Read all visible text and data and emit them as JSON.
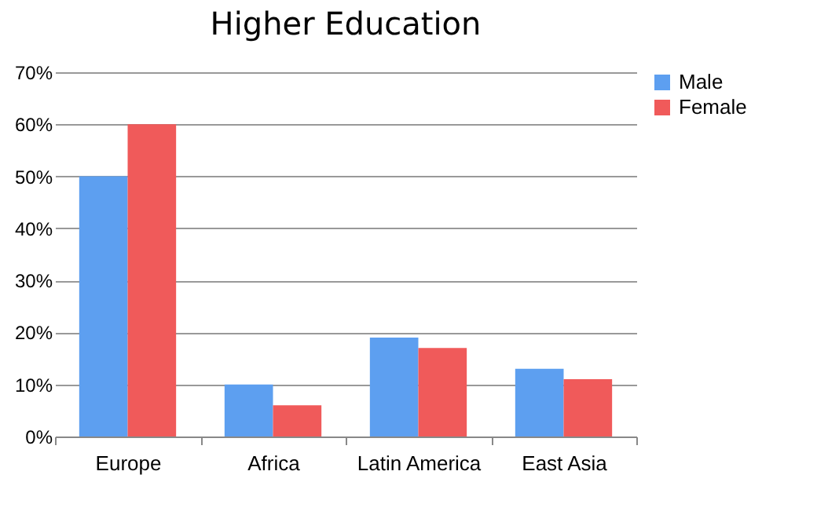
{
  "chart_data": {
    "type": "bar",
    "title": "Higher Education",
    "categories": [
      "Europe",
      "Africa",
      "Latin America",
      "East Asia"
    ],
    "series": [
      {
        "name": "Male",
        "color": "#5d9ff0",
        "values": [
          50,
          10,
          19,
          13
        ]
      },
      {
        "name": "Female",
        "color": "#f05a5a",
        "values": [
          60,
          6,
          17,
          11
        ]
      }
    ],
    "ylim": [
      0,
      70
    ],
    "yticks": [
      {
        "value": 0,
        "label": "0%"
      },
      {
        "value": 10,
        "label": "10%"
      },
      {
        "value": 20,
        "label": "20%"
      },
      {
        "value": 30,
        "label": "30%"
      },
      {
        "value": 40,
        "label": "40%"
      },
      {
        "value": 50,
        "label": "50%"
      },
      {
        "value": 60,
        "label": "60%"
      },
      {
        "value": 70,
        "label": "70%"
      }
    ],
    "grid": "y",
    "legend": "right"
  }
}
